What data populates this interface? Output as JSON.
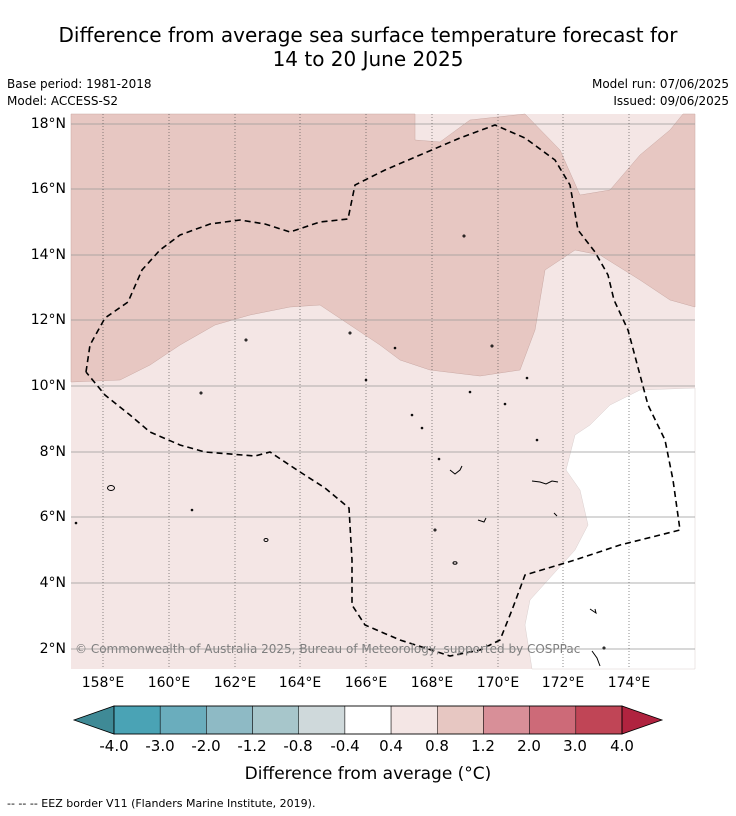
{
  "title": {
    "line1": "Difference from average sea surface temperature forecast for",
    "line2": "14 to 20 June 2025"
  },
  "meta": {
    "base_period": "Base period: 1981-2018",
    "model": "Model: ACCESS-S2",
    "model_run": "Model run: 07/06/2025",
    "issued": "Issued: 09/06/2025"
  },
  "map": {
    "lat_labels": [
      "18°N",
      "16°N",
      "14°N",
      "12°N",
      "10°N",
      "8°N",
      "6°N",
      "4°N",
      "2°N"
    ],
    "lon_labels": [
      "158°E",
      "160°E",
      "162°E",
      "164°E",
      "166°E",
      "168°E",
      "170°E",
      "172°E",
      "174°E"
    ],
    "copyright": "© Commonwealth of Australia 2025, Bureau of Meteorology, supported by COSPPac",
    "colors": {
      "band_0.4_0.8": "#f4e6e5",
      "band_0.8_1.2": "#e7c7c2",
      "band_-0.4_0.4": "#ffffff",
      "eez_border": "#000000"
    }
  },
  "colorbar": {
    "ticks": [
      "-4.0",
      "-3.0",
      "-2.0",
      "-1.2",
      "-0.8",
      "-0.4",
      "0.4",
      "0.8",
      "1.2",
      "2.0",
      "3.0",
      "4.0"
    ],
    "colors": [
      "#3f8a96",
      "#4aa3b5",
      "#6aadbd",
      "#8ebac5",
      "#a7c6cb",
      "#cfd9db",
      "#ffffff",
      "#f4e6e5",
      "#e7c7c2",
      "#d88f98",
      "#cd6a78",
      "#c04556",
      "#b0233f"
    ],
    "label": "Difference from average (°C)"
  },
  "footnote": "--  --  -- EEZ border V11 (Flanders Marine Institute, 2019)."
}
